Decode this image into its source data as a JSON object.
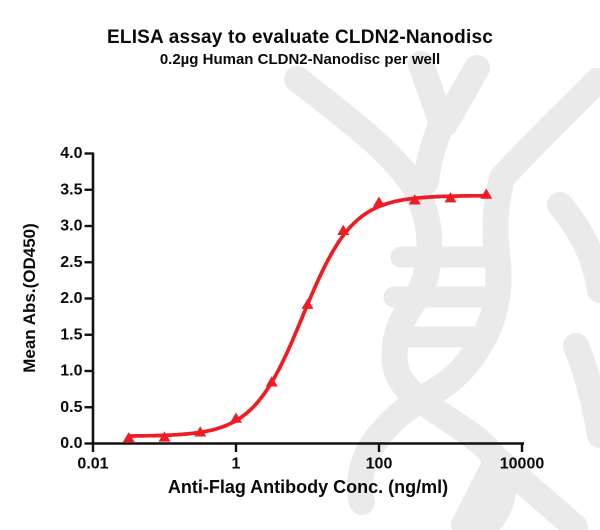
{
  "figure": {
    "title": "ELISA assay to evaluate CLDN2-Nanodisc",
    "subtitle": "0.2µg Human CLDN2-Nanodisc per well"
  },
  "watermark": {
    "description": "light gray DNA double-helix logo",
    "color": "#eaeaea"
  },
  "chart_data": {
    "type": "line",
    "title": "ELISA assay to evaluate CLDN2-Nanodisc",
    "subtitle": "0.2µg Human CLDN2-Nanodisc per well",
    "xlabel": "Anti-Flag Antibody Conc. (ng/ml)",
    "ylabel": "Mean Abs.(OD450)",
    "x_scale": "log10",
    "xlim": [
      0.01,
      10000
    ],
    "ylim": [
      0.0,
      4.0
    ],
    "grid": false,
    "legend": "none",
    "axis_color": "#111111",
    "x_ticks": [
      {
        "value": 0.01,
        "label": "0.01"
      },
      {
        "value": 1,
        "label": "1"
      },
      {
        "value": 100,
        "label": "100"
      },
      {
        "value": 10000,
        "label": "10000"
      }
    ],
    "y_ticks": [
      {
        "value": 0.0,
        "label": "0.0"
      },
      {
        "value": 0.5,
        "label": "0.5"
      },
      {
        "value": 1.0,
        "label": "1.0"
      },
      {
        "value": 1.5,
        "label": "1.5"
      },
      {
        "value": 2.0,
        "label": "2.0"
      },
      {
        "value": 2.5,
        "label": "2.5"
      },
      {
        "value": 3.0,
        "label": "3.0"
      },
      {
        "value": 3.5,
        "label": "3.5"
      },
      {
        "value": 4.0,
        "label": "4.0"
      }
    ],
    "series": [
      {
        "name": "Human CLDN2-Nanodisc 0.2µg per well",
        "marker": "triangle_up",
        "color": "#ef1c23",
        "points": [
          [
            0.0316,
            0.08
          ],
          [
            0.1,
            0.09
          ],
          [
            0.316,
            0.16
          ],
          [
            1,
            0.35
          ],
          [
            3.16,
            0.85
          ],
          [
            10,
            1.92
          ],
          [
            31.6,
            2.94
          ],
          [
            100,
            3.33
          ],
          [
            316,
            3.36
          ],
          [
            1000,
            3.39
          ],
          [
            3162,
            3.44
          ]
        ]
      }
    ],
    "fit_curve": {
      "model": "4PL",
      "bottom": 0.1,
      "top": 3.42,
      "ec50": 8.6,
      "hill": 1.24
    }
  }
}
